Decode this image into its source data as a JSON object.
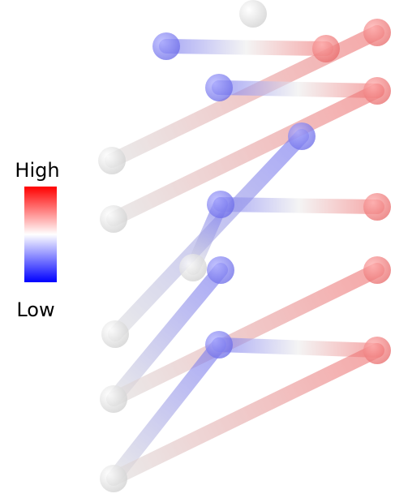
{
  "legend": {
    "high": "High",
    "low": "Low"
  }
}
